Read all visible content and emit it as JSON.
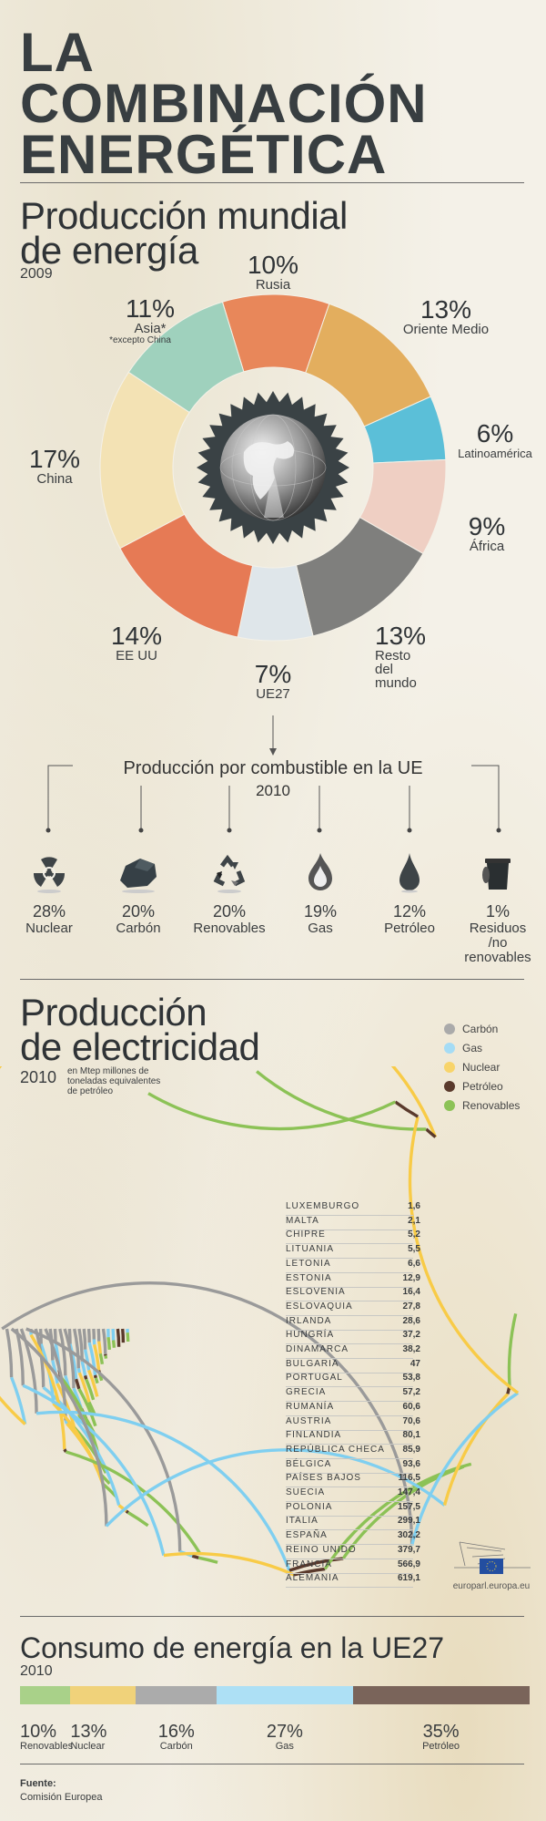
{
  "header": {
    "title_lines": [
      "LA",
      "COMBINACIÓN",
      "ENERGÉTICA"
    ]
  },
  "world": {
    "title_line1": "Producción mundial",
    "title_line2": "de energía",
    "year": "2009",
    "footnote": "*excepto China",
    "segments": [
      {
        "label": "Rusia",
        "pct": "10%",
        "value": 10,
        "color": "#e8875a"
      },
      {
        "label": "Oriente Medio",
        "pct": "13%",
        "value": 13,
        "color": "#e3ae5e"
      },
      {
        "label": "Latinoamérica",
        "pct": "6%",
        "value": 6,
        "color": "#5bbfd8"
      },
      {
        "label": "África",
        "pct": "9%",
        "value": 9,
        "color": "#efcfc3"
      },
      {
        "label": "Resto del mundo",
        "pct": "13%",
        "value": 13,
        "color": "#7f7f7d"
      },
      {
        "label": "UE27",
        "pct": "7%",
        "value": 7,
        "color": "#dfe6ea"
      },
      {
        "label": "EE UU",
        "pct": "14%",
        "value": 14,
        "color": "#e67a55"
      },
      {
        "label": "China",
        "pct": "17%",
        "value": 17,
        "color": "#f3e2b4"
      },
      {
        "label": "Asia*",
        "pct": "11%",
        "value": 11,
        "color": "#9fd1bd"
      }
    ]
  },
  "eu_fuel": {
    "title": "Producción por combustible en la UE",
    "year": "2010",
    "items": [
      {
        "pct": "28%",
        "label": "Nuclear",
        "icon": "radiation-icon"
      },
      {
        "pct": "20%",
        "label": "Carbón",
        "icon": "coal-icon"
      },
      {
        "pct": "20%",
        "label": "Renovables",
        "icon": "recycle-icon"
      },
      {
        "pct": "19%",
        "label": "Gas",
        "icon": "flame-icon"
      },
      {
        "pct": "12%",
        "label": "Petróleo",
        "icon": "oil-drop-icon"
      },
      {
        "pct": "1%",
        "label": "Residuos",
        "label2": "/no renovables",
        "icon": "trash-bin-icon"
      }
    ]
  },
  "electricity": {
    "title_line1": "Producción",
    "title_line2": "de electricidad",
    "year": "2010",
    "unit_note": [
      "en Mtep millones de",
      "toneladas equivalentes",
      "de petróleo"
    ],
    "legend": [
      {
        "label": "Carbón",
        "color": "#9a9a9a"
      },
      {
        "label": "Gas",
        "color": "#7fcff0"
      },
      {
        "label": "Nuclear",
        "color": "#f8cb47"
      },
      {
        "label": "Petróleo",
        "color": "#5a3a2c"
      },
      {
        "label": "Renovables",
        "color": "#8cc256"
      }
    ],
    "source_logo_text": "europarl.europa.eu"
  },
  "consumption": {
    "title": "Consumo de energía en la UE27",
    "year": "2010",
    "segments": [
      {
        "label": "Renovables",
        "pct": "10%",
        "value": 10,
        "color": "#a9d189"
      },
      {
        "label": "Nuclear",
        "pct": "13%",
        "value": 13,
        "color": "#f0d27a"
      },
      {
        "label": "Carbón",
        "pct": "16%",
        "value": 16,
        "color": "#ababab"
      },
      {
        "label": "Gas",
        "pct": "27%",
        "value": 27,
        "color": "#ade0f5"
      },
      {
        "label": "Petróleo",
        "pct": "35%",
        "value": 35,
        "color": "#7a645a"
      }
    ]
  },
  "footer": {
    "source_label": "Fuente:",
    "source_value": "Comisión Europea"
  },
  "chart_data": [
    {
      "type": "pie",
      "title": "Producción mundial de energía 2009",
      "categories": [
        "Rusia",
        "Oriente Medio",
        "Latinoamérica",
        "África",
        "Resto del mundo",
        "UE27",
        "EE UU",
        "China",
        "Asia (excepto China)"
      ],
      "values": [
        10,
        13,
        6,
        9,
        13,
        7,
        14,
        17,
        11
      ],
      "unit": "%"
    },
    {
      "type": "bar",
      "title": "Producción por combustible en la UE 2010",
      "categories": [
        "Nuclear",
        "Carbón",
        "Renovables",
        "Gas",
        "Petróleo",
        "Residuos/no renovables"
      ],
      "values": [
        28,
        20,
        20,
        19,
        12,
        1
      ],
      "unit": "%"
    },
    {
      "type": "bar",
      "title": "Producción de electricidad 2010 (Mtep)",
      "ylabel": "en Mtep millones de toneladas equivalentes de petróleo",
      "legend": [
        "Carbón",
        "Gas",
        "Nuclear",
        "Petróleo",
        "Renovables"
      ],
      "categories": [
        "LUXEMBURGO",
        "MALTA",
        "CHIPRE",
        "LITUANIA",
        "LETONIA",
        "ESTONIA",
        "ESLOVENIA",
        "ESLOVAQUIA",
        "IRLANDA",
        "HUNGRÍA",
        "DINAMARCA",
        "BULGARIA",
        "PORTUGAL",
        "GRECIA",
        "RUMANÍA",
        "AUSTRIA",
        "FINLANDIA",
        "REPÚBLICA CHECA",
        "BÉLGICA",
        "PAÍSES BAJOS",
        "SUECIA",
        "POLONIA",
        "ITALIA",
        "ESPAÑA",
        "REINO UNIDO",
        "FRANCIA",
        "ALEMANIA"
      ],
      "values": [
        1.6,
        2.1,
        5.2,
        5.5,
        6.6,
        12.9,
        16.4,
        27.8,
        28.6,
        37.2,
        38.2,
        47,
        53.8,
        57.2,
        60.6,
        70.6,
        80.1,
        85.9,
        93.6,
        116.5,
        147.4,
        157.5,
        299.1,
        302.2,
        379.7,
        566.9,
        619.1
      ],
      "labels": [
        "1,6",
        "2,1",
        "5,2",
        "5,5",
        "6,6",
        "12,9",
        "16,4",
        "27,8",
        "28,6",
        "37,2",
        "38,2",
        "47",
        "53,8",
        "57,2",
        "60,6",
        "70,6",
        "80,1",
        "85,9",
        "93,6",
        "116,5",
        "147,4",
        "157,5",
        "299,1",
        "302,2",
        "379,7",
        "566,9",
        "619,1"
      ]
    },
    {
      "type": "bar",
      "title": "Consumo de energía en la UE27 2010",
      "categories": [
        "Renovables",
        "Nuclear",
        "Carbón",
        "Gas",
        "Petróleo"
      ],
      "values": [
        10,
        13,
        16,
        27,
        35
      ],
      "unit": "%"
    }
  ]
}
